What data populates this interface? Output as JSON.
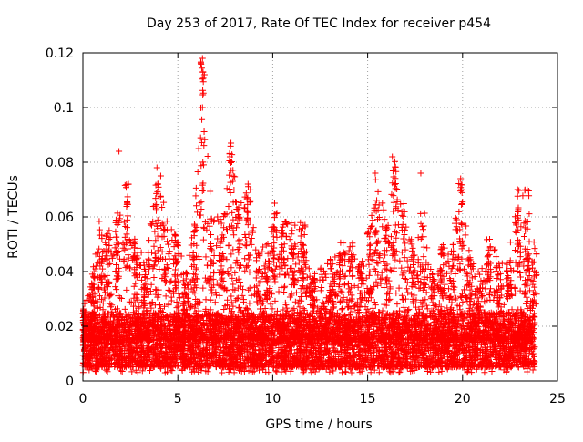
{
  "chart_data": {
    "type": "scatter",
    "title": "Day 253 of 2017, Rate Of TEC Index for receiver p454",
    "xlabel": "GPS time / hours",
    "ylabel": "ROTI / TECUs",
    "xlim": [
      0,
      25
    ],
    "ylim": [
      0,
      0.12
    ],
    "x_ticks": [
      0,
      5,
      10,
      15,
      20,
      25
    ],
    "x_tick_labels": [
      "0",
      "5",
      "10",
      "15",
      "20",
      "25"
    ],
    "y_ticks": [
      0,
      0.02,
      0.04,
      0.06,
      0.08,
      0.1,
      0.12
    ],
    "y_tick_labels": [
      "0",
      "0.02",
      "0.04",
      "0.06",
      "0.08",
      "0.1",
      "0.12"
    ],
    "grid": true,
    "marker": "+",
    "series": [
      {
        "name": "ROTI",
        "color": "#ff0000",
        "data_range_x": [
          0,
          23.8
        ],
        "baseline_band": [
          0.005,
          0.025
        ],
        "highlight_points": [
          {
            "x": 1.9,
            "y": 0.084
          },
          {
            "x": 2.4,
            "y": 0.072
          },
          {
            "x": 3.9,
            "y": 0.078
          },
          {
            "x": 4.1,
            "y": 0.075
          },
          {
            "x": 6.3,
            "y": 0.118
          },
          {
            "x": 6.4,
            "y": 0.112
          },
          {
            "x": 6.3,
            "y": 0.1
          },
          {
            "x": 6.1,
            "y": 0.085
          },
          {
            "x": 7.8,
            "y": 0.087
          },
          {
            "x": 8.7,
            "y": 0.072
          },
          {
            "x": 10.1,
            "y": 0.065
          },
          {
            "x": 16.3,
            "y": 0.082
          },
          {
            "x": 15.4,
            "y": 0.076
          },
          {
            "x": 17.8,
            "y": 0.076
          },
          {
            "x": 19.9,
            "y": 0.074
          },
          {
            "x": 22.9,
            "y": 0.07
          },
          {
            "x": 23.4,
            "y": 0.07
          }
        ],
        "activity_envelope": [
          [
            0.0,
            0.026
          ],
          [
            0.5,
            0.04
          ],
          [
            0.9,
            0.06
          ],
          [
            1.3,
            0.055
          ],
          [
            1.8,
            0.062
          ],
          [
            2.3,
            0.073
          ],
          [
            2.8,
            0.052
          ],
          [
            3.3,
            0.045
          ],
          [
            3.9,
            0.078
          ],
          [
            4.4,
            0.06
          ],
          [
            4.9,
            0.055
          ],
          [
            5.4,
            0.04
          ],
          [
            5.9,
            0.062
          ],
          [
            6.3,
            0.118
          ],
          [
            6.8,
            0.06
          ],
          [
            7.3,
            0.06
          ],
          [
            7.8,
            0.087
          ],
          [
            8.2,
            0.065
          ],
          [
            8.7,
            0.072
          ],
          [
            9.2,
            0.05
          ],
          [
            9.7,
            0.05
          ],
          [
            10.1,
            0.065
          ],
          [
            10.6,
            0.06
          ],
          [
            11.1,
            0.058
          ],
          [
            11.6,
            0.058
          ],
          [
            12.1,
            0.04
          ],
          [
            12.6,
            0.042
          ],
          [
            13.1,
            0.045
          ],
          [
            13.6,
            0.052
          ],
          [
            14.1,
            0.052
          ],
          [
            14.6,
            0.045
          ],
          [
            15.1,
            0.058
          ],
          [
            15.5,
            0.075
          ],
          [
            16.0,
            0.06
          ],
          [
            16.4,
            0.082
          ],
          [
            16.9,
            0.065
          ],
          [
            17.4,
            0.05
          ],
          [
            17.9,
            0.063
          ],
          [
            18.4,
            0.04
          ],
          [
            18.9,
            0.05
          ],
          [
            19.4,
            0.048
          ],
          [
            19.9,
            0.074
          ],
          [
            20.4,
            0.045
          ],
          [
            20.9,
            0.04
          ],
          [
            21.4,
            0.055
          ],
          [
            21.9,
            0.045
          ],
          [
            22.4,
            0.045
          ],
          [
            22.9,
            0.07
          ],
          [
            23.4,
            0.07
          ],
          [
            23.8,
            0.05
          ]
        ]
      }
    ]
  }
}
